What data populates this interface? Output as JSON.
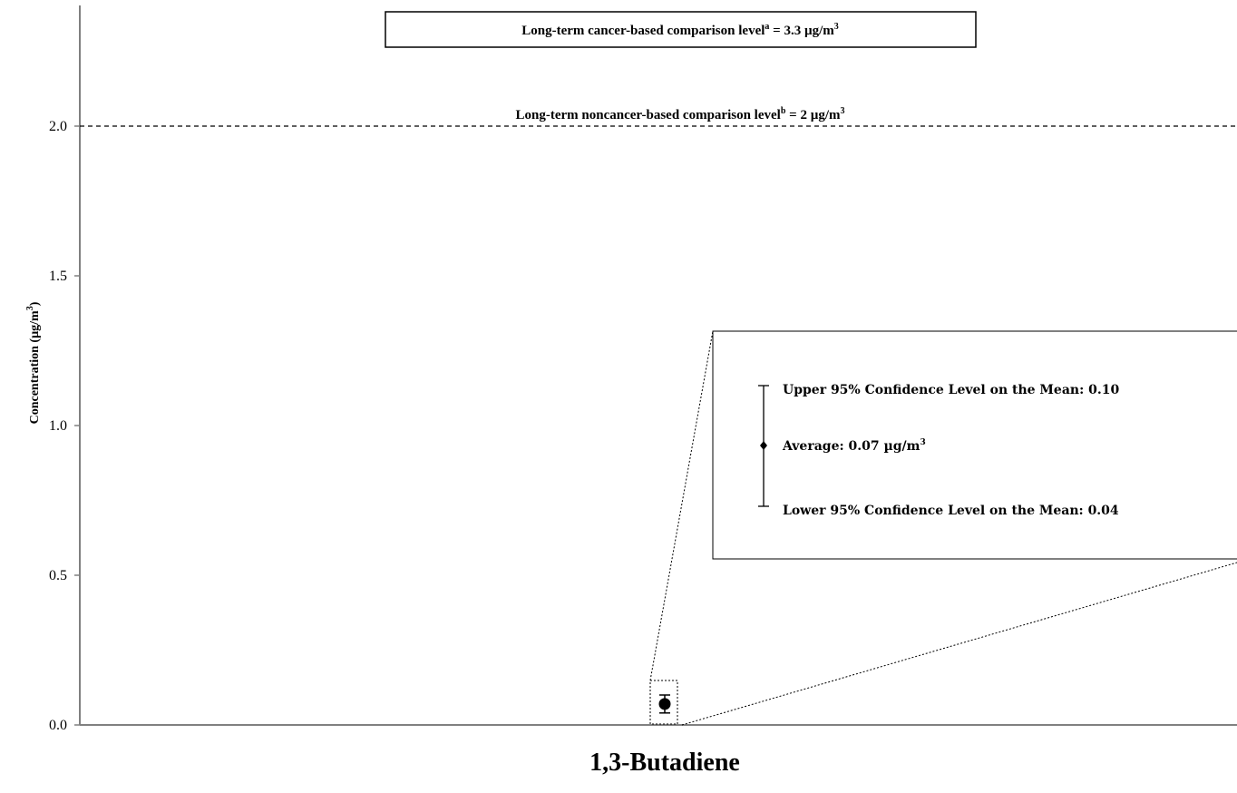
{
  "chart_data": {
    "type": "scatter",
    "title": "",
    "xlabel": "1,3-Butadiene",
    "ylabel_main": "Concentration (µg/m",
    "ylabel_sup": "3",
    "ylabel_close": ")",
    "ylim": [
      0,
      2.3
    ],
    "yticks": [
      "0.0",
      "0.5",
      "1.0",
      "1.5",
      "2.0"
    ],
    "grid": false,
    "series": [
      {
        "category": "1,3-Butadiene",
        "average": 0.07,
        "upper_95_confidence": 0.1,
        "lower_95_confidence": 0.04
      }
    ],
    "reference_lines": {
      "noncancer": {
        "value": 2.0,
        "style": "dashed",
        "label_main": "Long-term noncancer-based comparison level",
        "label_sup": "b",
        "label_rest": " = 2 µg/m",
        "label_unit_sup": "3"
      },
      "cancer": {
        "value": 3.3,
        "label_main": "Long-term cancer-based comparison level",
        "label_sup": "a",
        "label_rest": " = 3.3 µg/m",
        "label_unit_sup": "3"
      }
    },
    "legend": {
      "upper_label": "Upper 95% Confidence Level on the Mean: 0.10",
      "average_label": "Average: 0.07 µg/m",
      "average_label_sup": "3",
      "lower_label": "Lower 95% Confidence Level on the Mean: 0.04"
    }
  }
}
